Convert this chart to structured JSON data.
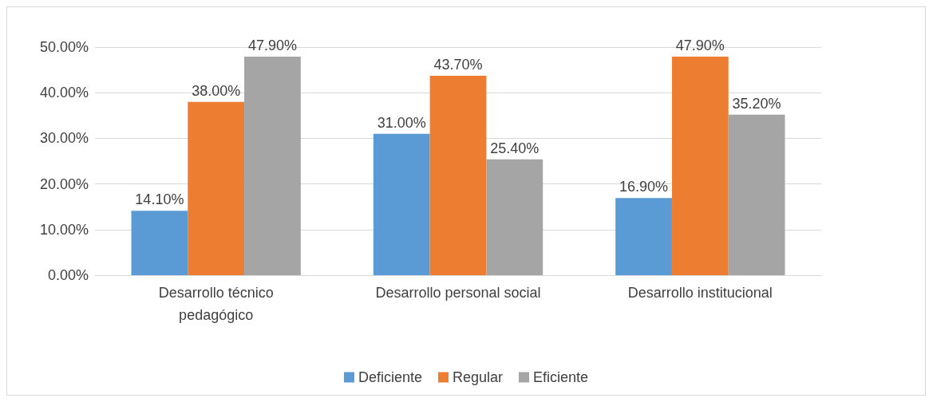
{
  "chart_data": {
    "type": "bar",
    "categories": [
      "Desarrollo técnico\npedagógico",
      "Desarrollo personal social",
      "Desarrollo institucional"
    ],
    "series": [
      {
        "name": "Deficiente",
        "color": "#5b9bd5",
        "values": [
          14.1,
          31.0,
          16.9
        ],
        "value_labels": [
          "14.10%",
          "31.00%",
          "16.90%"
        ]
      },
      {
        "name": "Regular",
        "color": "#ed7d31",
        "values": [
          38.0,
          43.7,
          47.9
        ],
        "value_labels": [
          "38.00%",
          "43.70%",
          "47.90%"
        ]
      },
      {
        "name": "Eficiente",
        "color": "#a5a5a5",
        "values": [
          47.9,
          25.4,
          35.2
        ],
        "value_labels": [
          "47.90%",
          "25.40%",
          "35.20%"
        ]
      }
    ],
    "ylim": [
      0,
      50
    ],
    "yticks": [
      {
        "value": 0,
        "label": "0.00%"
      },
      {
        "value": 10,
        "label": "10.00%"
      },
      {
        "value": 20,
        "label": "20.00%"
      },
      {
        "value": 30,
        "label": "30.00%"
      },
      {
        "value": 40,
        "label": "40.00%"
      },
      {
        "value": 50,
        "label": "50.00%"
      }
    ],
    "grid": true,
    "legend": "bottom"
  }
}
